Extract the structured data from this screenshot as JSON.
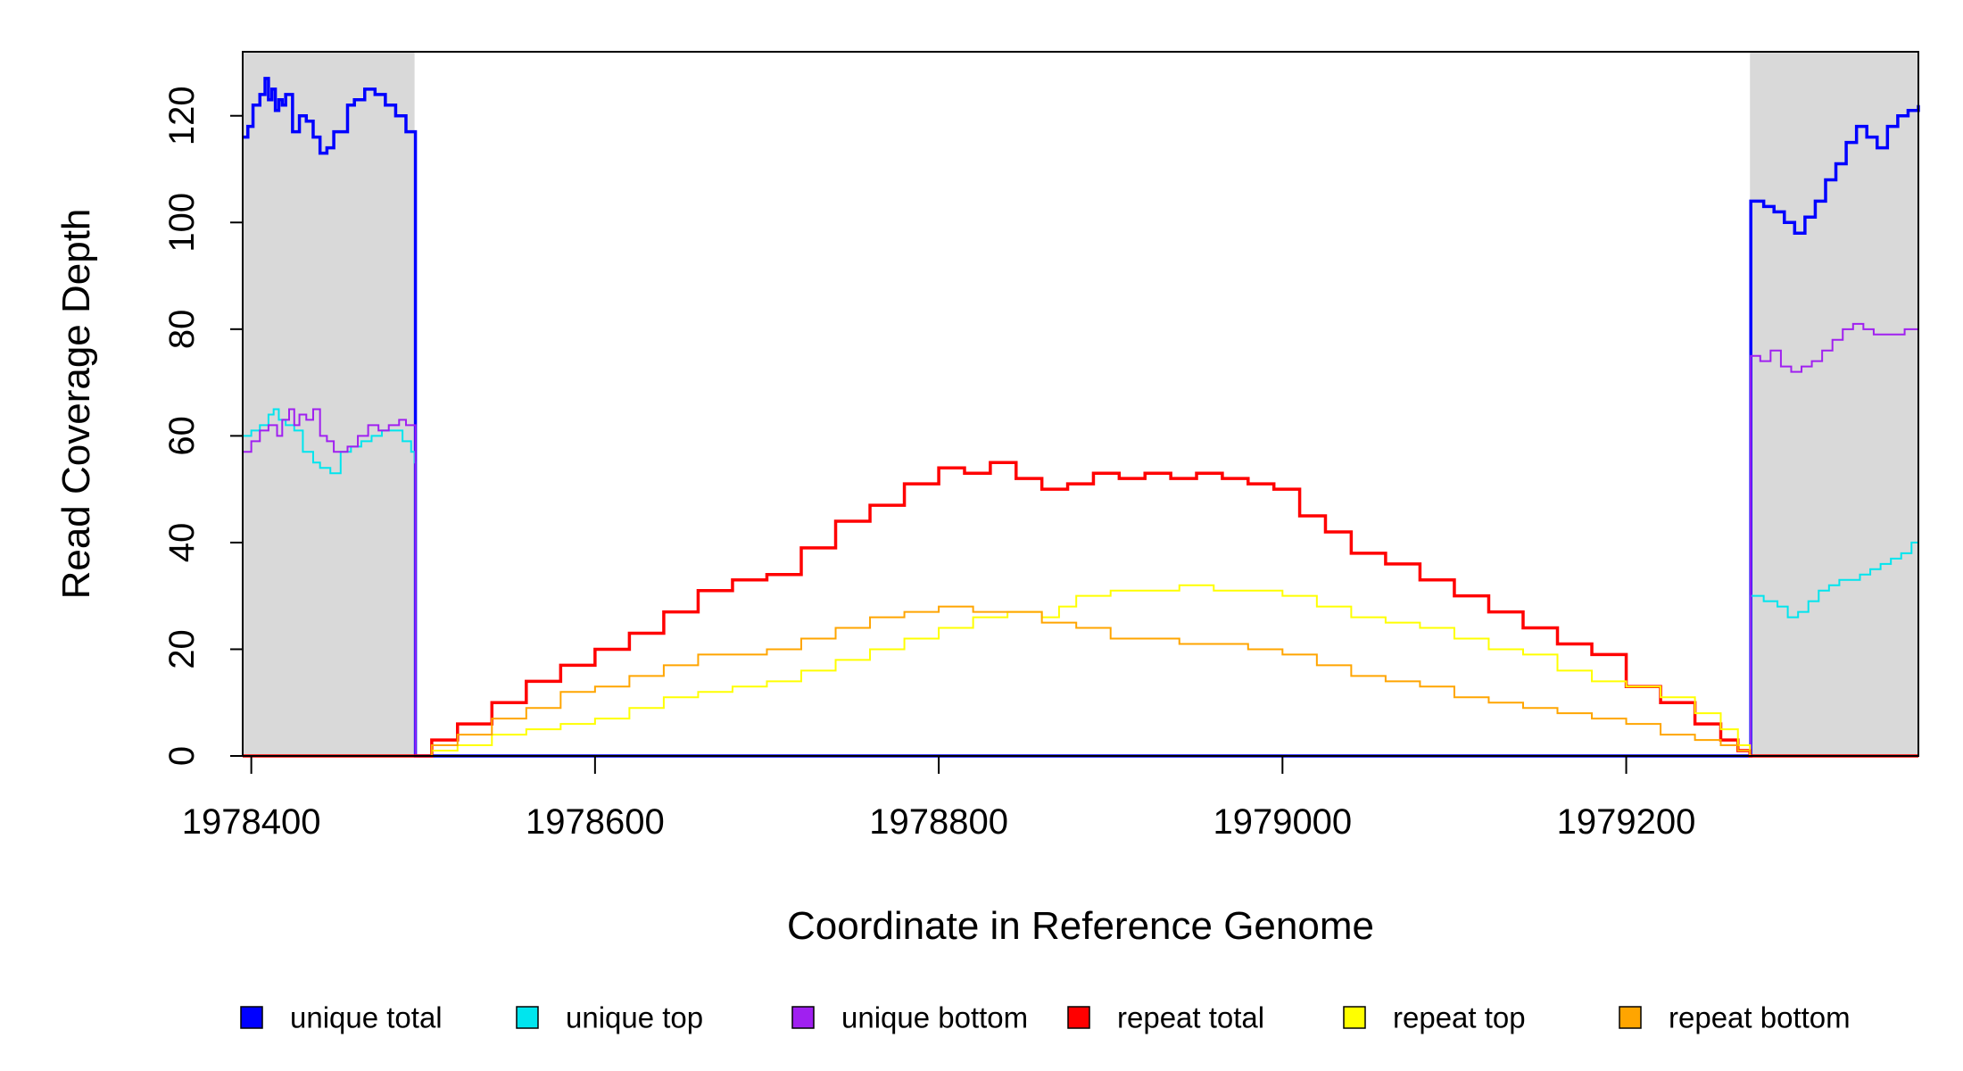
{
  "chart_data": {
    "type": "line",
    "title": "",
    "xlabel": "Coordinate in Reference Genome",
    "ylabel": "Read Coverage Depth",
    "xlim": [
      1978395,
      1979370
    ],
    "ylim": [
      0,
      132
    ],
    "x_ticks": [
      1978400,
      1978600,
      1978800,
      1979000,
      1979200
    ],
    "x_tick_labels": [
      "1978400",
      "1978600",
      "1978800",
      "1979000",
      "1979200"
    ],
    "y_ticks": [
      0,
      20,
      40,
      60,
      80,
      100,
      120
    ],
    "y_tick_labels": [
      "0",
      "20",
      "40",
      "60",
      "80",
      "100",
      "120"
    ],
    "shaded_regions": [
      [
        1978395,
        1978495
      ],
      [
        1979272,
        1979370
      ]
    ],
    "shaded_color": "#d9d9d9",
    "grid": false,
    "legend_position": "bottom",
    "series": [
      {
        "name": "unique total",
        "color": "#0000ff",
        "x": [
          1978395,
          1978398,
          1978401,
          1978405,
          1978408,
          1978410,
          1978412,
          1978414,
          1978416,
          1978418,
          1978420,
          1978424,
          1978428,
          1978432,
          1978436,
          1978440,
          1978444,
          1978448,
          1978452,
          1978456,
          1978460,
          1978466,
          1978472,
          1978478,
          1978484,
          1978490,
          1978493,
          1978495,
          1978495.5,
          1979272,
          1979272.5,
          1979280,
          1979286,
          1979292,
          1979298,
          1979304,
          1979310,
          1979316,
          1979322,
          1979328,
          1979334,
          1979340,
          1979346,
          1979352,
          1979358,
          1979364,
          1979370
        ],
        "y": [
          116,
          118,
          122,
          124,
          127,
          123,
          125,
          121,
          123,
          122,
          124,
          117,
          120,
          119,
          116,
          113,
          114,
          117,
          117,
          122,
          123,
          125,
          124,
          122,
          120,
          117,
          117,
          117,
          0,
          0,
          104,
          103,
          102,
          100,
          98,
          101,
          104,
          108,
          111,
          115,
          118,
          116,
          114,
          118,
          120,
          121,
          122
        ]
      },
      {
        "name": "unique top",
        "color": "#00e5ee",
        "x": [
          1978395,
          1978400,
          1978405,
          1978410,
          1978413,
          1978416,
          1978420,
          1978425,
          1978430,
          1978436,
          1978440,
          1978446,
          1978452,
          1978458,
          1978464,
          1978470,
          1978476,
          1978482,
          1978488,
          1978493,
          1978495,
          1978495.5,
          1979272,
          1979272.5,
          1979280,
          1979288,
          1979294,
          1979300,
          1979306,
          1979312,
          1979318,
          1979324,
          1979330,
          1979336,
          1979342,
          1979348,
          1979354,
          1979360,
          1979366,
          1979370
        ],
        "y": [
          60,
          61,
          62,
          64,
          65,
          63,
          62,
          61,
          57,
          55,
          54,
          53,
          57,
          58,
          59,
          60,
          61,
          61,
          59,
          57,
          55,
          0,
          0,
          30,
          29,
          28,
          26,
          27,
          29,
          31,
          32,
          33,
          33,
          34,
          35,
          36,
          37,
          38,
          40,
          41
        ]
      },
      {
        "name": "unique bottom",
        "color": "#a020f0",
        "x": [
          1978395,
          1978400,
          1978405,
          1978410,
          1978415,
          1978418,
          1978422,
          1978425,
          1978428,
          1978432,
          1978436,
          1978440,
          1978444,
          1978448,
          1978452,
          1978456,
          1978462,
          1978468,
          1978474,
          1978480,
          1978486,
          1978490,
          1978493,
          1978495,
          1978495.5,
          1979272,
          1979272.5,
          1979278,
          1979284,
          1979290,
          1979296,
          1979302,
          1979308,
          1979314,
          1979320,
          1979326,
          1979332,
          1979338,
          1979344,
          1979350,
          1979356,
          1979362,
          1979368,
          1979370
        ],
        "y": [
          57,
          59,
          61,
          62,
          60,
          63,
          65,
          62,
          64,
          63,
          65,
          60,
          59,
          57,
          57,
          58,
          60,
          62,
          61,
          62,
          63,
          62,
          62,
          62,
          0,
          0,
          75,
          74,
          76,
          73,
          72,
          73,
          74,
          76,
          78,
          80,
          81,
          80,
          79,
          79,
          79,
          80,
          80,
          80
        ]
      },
      {
        "name": "repeat total",
        "color": "#ff0000",
        "x": [
          1978395,
          1978495,
          1978505,
          1978520,
          1978540,
          1978560,
          1978580,
          1978600,
          1978620,
          1978640,
          1978660,
          1978680,
          1978700,
          1978720,
          1978740,
          1978760,
          1978780,
          1978800,
          1978815,
          1978830,
          1978845,
          1978860,
          1978875,
          1978890,
          1978905,
          1978920,
          1978935,
          1978950,
          1978965,
          1978980,
          1978995,
          1979010,
          1979025,
          1979040,
          1979060,
          1979080,
          1979100,
          1979120,
          1979140,
          1979160,
          1979180,
          1979200,
          1979220,
          1979240,
          1979255,
          1979265,
          1979272,
          1979370
        ],
        "y": [
          0,
          0,
          3,
          6,
          10,
          14,
          17,
          20,
          23,
          27,
          31,
          33,
          34,
          39,
          44,
          47,
          51,
          54,
          53,
          55,
          52,
          50,
          51,
          53,
          52,
          53,
          52,
          53,
          52,
          51,
          50,
          45,
          42,
          38,
          36,
          33,
          30,
          27,
          24,
          21,
          19,
          13,
          10,
          6,
          3,
          1,
          0,
          0
        ]
      },
      {
        "name": "repeat top",
        "color": "#ffff00",
        "x": [
          1978395,
          1978495,
          1978505,
          1978520,
          1978540,
          1978560,
          1978580,
          1978600,
          1978620,
          1978640,
          1978660,
          1978680,
          1978700,
          1978720,
          1978740,
          1978760,
          1978780,
          1978800,
          1978820,
          1978840,
          1978860,
          1978870,
          1978880,
          1978900,
          1978920,
          1978940,
          1978960,
          1978980,
          1979000,
          1979020,
          1979040,
          1979060,
          1979080,
          1979100,
          1979120,
          1979140,
          1979160,
          1979180,
          1979200,
          1979220,
          1979240,
          1979255,
          1979265,
          1979272,
          1979370
        ],
        "y": [
          0,
          0,
          1,
          2,
          4,
          5,
          6,
          7,
          9,
          11,
          12,
          13,
          14,
          16,
          18,
          20,
          22,
          24,
          26,
          27,
          26,
          28,
          30,
          31,
          31,
          32,
          31,
          31,
          30,
          28,
          26,
          25,
          24,
          22,
          20,
          19,
          16,
          14,
          13,
          11,
          8,
          5,
          2,
          0,
          0
        ]
      },
      {
        "name": "repeat bottom",
        "color": "#ffa500",
        "x": [
          1978395,
          1978495,
          1978505,
          1978520,
          1978540,
          1978560,
          1978580,
          1978600,
          1978620,
          1978640,
          1978660,
          1978680,
          1978700,
          1978720,
          1978740,
          1978760,
          1978780,
          1978800,
          1978820,
          1978840,
          1978860,
          1978880,
          1978900,
          1978920,
          1978940,
          1978960,
          1978980,
          1979000,
          1979020,
          1979040,
          1979060,
          1979080,
          1979100,
          1979120,
          1979140,
          1979160,
          1979180,
          1979200,
          1979220,
          1979240,
          1979255,
          1979265,
          1979272,
          1979370
        ],
        "y": [
          0,
          0,
          2,
          4,
          7,
          9,
          12,
          13,
          15,
          17,
          19,
          19,
          20,
          22,
          24,
          26,
          27,
          28,
          27,
          27,
          25,
          24,
          22,
          22,
          21,
          21,
          20,
          19,
          17,
          15,
          14,
          13,
          11,
          10,
          9,
          8,
          7,
          6,
          4,
          3,
          2,
          1,
          0,
          0
        ]
      }
    ]
  }
}
